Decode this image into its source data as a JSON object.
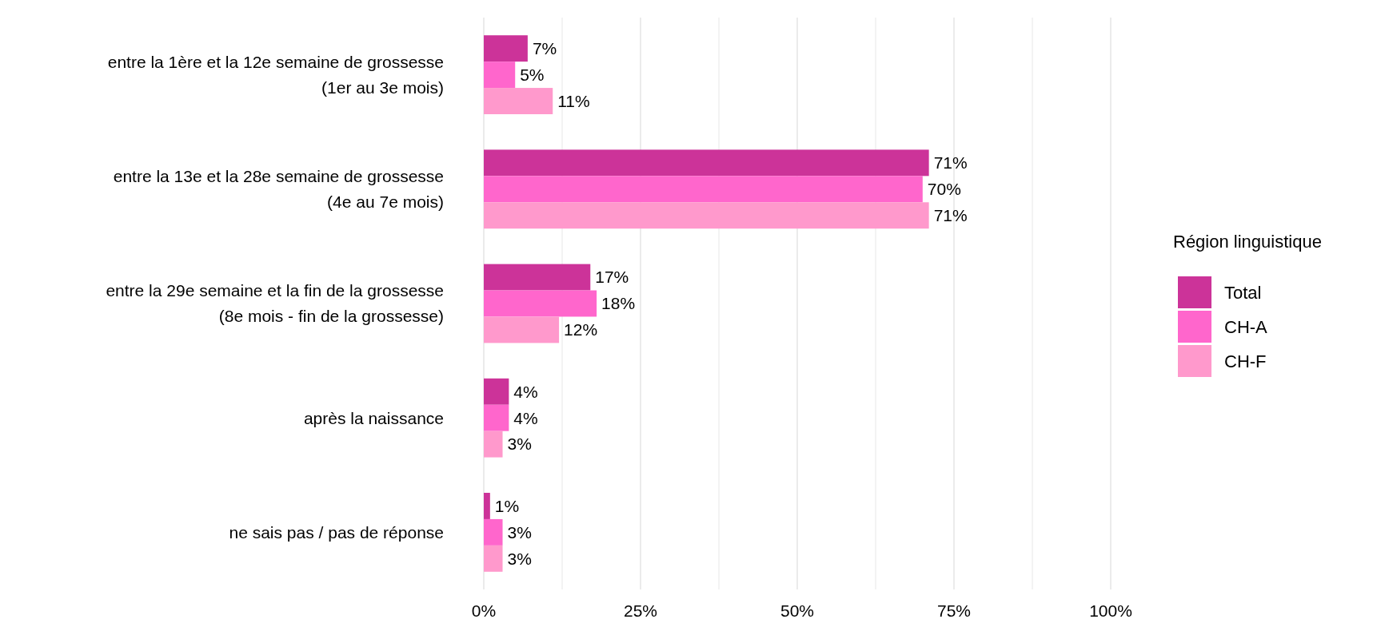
{
  "chart_data": {
    "type": "bar",
    "orientation": "horizontal",
    "categories": [
      "entre la 1ère et la 12e semaine de grossesse\n(1er au 3e mois)",
      "entre la 13e et la 28e semaine de grossesse\n(4e au 7e mois)",
      "entre la 29e semaine et la fin de la grossesse\n(8e mois - fin de la grossesse)",
      "après la naissance",
      "ne sais pas / pas de réponse"
    ],
    "series": [
      {
        "name": "Total",
        "color": "#cc3399",
        "values": [
          7,
          71,
          17,
          4,
          1
        ],
        "value_labels": [
          "7%",
          "71%",
          "17%",
          "4%",
          "1%"
        ]
      },
      {
        "name": "CH-A",
        "color": "#ff66cc",
        "values": [
          5,
          70,
          18,
          4,
          3
        ],
        "value_labels": [
          "5%",
          "70%",
          "18%",
          "4%",
          "3%"
        ]
      },
      {
        "name": "CH-F",
        "color": "#ff99cc",
        "values": [
          11,
          71,
          12,
          3,
          3
        ],
        "value_labels": [
          "11%",
          "71%",
          "12%",
          "3%",
          "3%"
        ]
      }
    ],
    "xlim": [
      0,
      100
    ],
    "xticks": [
      {
        "value": 0,
        "label": "0%"
      },
      {
        "value": 12.5,
        "label": null
      },
      {
        "value": 25,
        "label": "25%"
      },
      {
        "value": 37.5,
        "label": null
      },
      {
        "value": 50,
        "label": "50%"
      },
      {
        "value": 62.5,
        "label": null
      },
      {
        "value": 75,
        "label": "75%"
      },
      {
        "value": 87.5,
        "label": null
      },
      {
        "value": 100,
        "label": "100%"
      }
    ],
    "grid": "x",
    "legend": "right",
    "legend_title": "Région linguistique"
  }
}
